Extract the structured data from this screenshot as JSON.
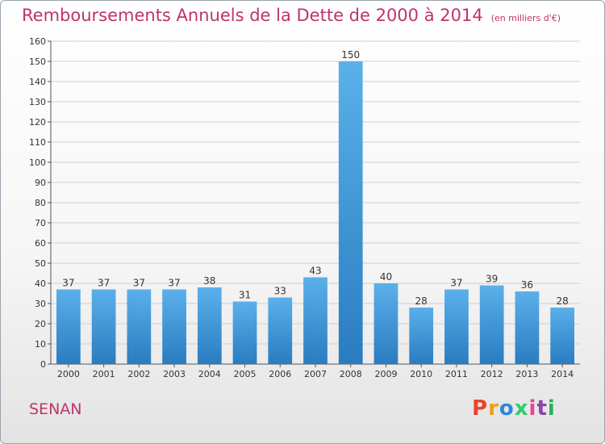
{
  "title": "Remboursements Annuels de la Dette de 2000 à 2014",
  "unit_note": "(en milliers d'€)",
  "commune": "SENAN",
  "logo": {
    "text": "Proxiti",
    "letters": [
      "P",
      "r",
      "o",
      "x",
      "i",
      "t",
      "i"
    ],
    "colors": [
      "#e8452c",
      "#f39c12",
      "#2e86de",
      "#2ecc71",
      "#e84393",
      "#8e44ad",
      "#27ae60"
    ]
  },
  "colors": {
    "bar_top": "#5bb0ea",
    "bar_bottom": "#2a7cc0",
    "title": "#c0336a",
    "grid": "#cfcfcf"
  },
  "chart_data": {
    "type": "bar",
    "categories": [
      "2000",
      "2001",
      "2002",
      "2003",
      "2004",
      "2005",
      "2006",
      "2007",
      "2008",
      "2009",
      "2010",
      "2011",
      "2012",
      "2013",
      "2014"
    ],
    "values": [
      37,
      37,
      37,
      37,
      38,
      31,
      33,
      43,
      150,
      40,
      28,
      37,
      39,
      36,
      28
    ],
    "title": "Remboursements Annuels de la Dette de 2000 à 2014",
    "xlabel": "",
    "ylabel": "",
    "ylim": [
      0,
      160
    ],
    "yticks": [
      0,
      10,
      20,
      30,
      40,
      50,
      60,
      70,
      80,
      90,
      100,
      110,
      120,
      130,
      140,
      150,
      160
    ],
    "grid": true,
    "data_labels": true
  }
}
